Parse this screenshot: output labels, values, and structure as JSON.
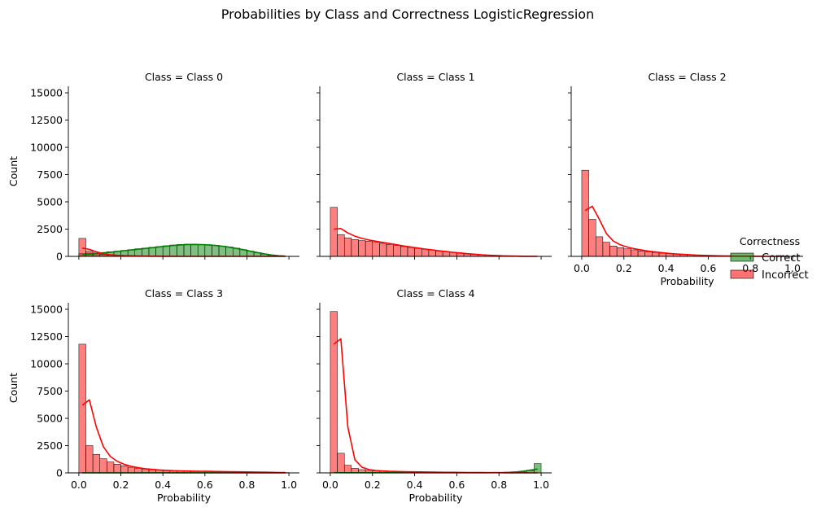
{
  "figure": {
    "title": "Probabilities by Class and Correctness LogisticRegression"
  },
  "legend": {
    "title": "Correctness",
    "placement": "right",
    "entries": [
      {
        "label": "Correct",
        "color": "#008000"
      },
      {
        "label": "Incorrect",
        "color": "#ff0000"
      }
    ]
  },
  "colors": {
    "correct": "#008000",
    "incorrect": "#ff0000"
  },
  "chart_data": {
    "type": "bar",
    "bins": 30,
    "bin_range": [
      0,
      1
    ],
    "xlabel": "Probability",
    "ylabel": "Count",
    "xlim": [
      -0.05,
      1.05
    ],
    "ylim": [
      0,
      15600
    ],
    "xticks": [
      0.0,
      0.2,
      0.4,
      0.6,
      0.8,
      1.0
    ],
    "xtick_labels": [
      "0.0",
      "0.2",
      "0.4",
      "0.6",
      "0.8",
      "1.0"
    ],
    "yticks": [
      0,
      2500,
      5000,
      7500,
      10000,
      12500,
      15000
    ],
    "ytick_labels": [
      "0",
      "2500",
      "5000",
      "7500",
      "10000",
      "12500",
      "15000"
    ],
    "grid": false,
    "layout": {
      "columns": 3,
      "rows": 2
    },
    "facets": [
      {
        "title": "Class = Class 0",
        "correct": [
          250,
          300,
          320,
          360,
          420,
          480,
          550,
          620,
          700,
          760,
          830,
          900,
          970,
          1040,
          1090,
          1120,
          1120,
          1100,
          1070,
          1020,
          940,
          860,
          750,
          620,
          480,
          340,
          210,
          110,
          40,
          10
        ],
        "incorrect": [
          1650,
          480,
          270,
          180,
          120,
          90,
          70,
          55,
          40,
          30,
          25,
          20,
          15,
          10,
          8,
          5,
          4,
          3,
          2,
          2,
          1,
          1,
          0,
          0,
          0,
          0,
          0,
          0,
          0,
          0
        ],
        "kde_correct": [
          150,
          200,
          260,
          320,
          380,
          450,
          520,
          590,
          660,
          730,
          800,
          870,
          940,
          1000,
          1050,
          1080,
          1090,
          1080,
          1050,
          1000,
          930,
          840,
          730,
          610,
          480,
          350,
          230,
          130,
          60,
          20
        ],
        "kde_incorrect": [
          760,
          640,
          420,
          250,
          150,
          100,
          70,
          50,
          35,
          25,
          18,
          12,
          8,
          5,
          3,
          2,
          1,
          1,
          0,
          0,
          0,
          0,
          0,
          0,
          0,
          0,
          0,
          0,
          0,
          0
        ]
      },
      {
        "title": "Class = Class 1",
        "correct": [],
        "incorrect": [
          4500,
          2000,
          1700,
          1550,
          1450,
          1400,
          1300,
          1200,
          1100,
          1000,
          900,
          820,
          740,
          660,
          580,
          500,
          430,
          360,
          300,
          240,
          190,
          150,
          110,
          80,
          55,
          35,
          20,
          10,
          5,
          2
        ],
        "kde_correct": [],
        "kde_incorrect": [
          2500,
          2550,
          2150,
          1850,
          1650,
          1500,
          1390,
          1280,
          1170,
          1060,
          950,
          850,
          760,
          670,
          590,
          510,
          440,
          370,
          310,
          250,
          200,
          150,
          110,
          80,
          55,
          35,
          20,
          10,
          5,
          2
        ]
      },
      {
        "title": "Class = Class 2",
        "correct": [],
        "incorrect": [
          7900,
          3400,
          1800,
          1300,
          950,
          800,
          700,
          600,
          500,
          420,
          360,
          300,
          250,
          210,
          170,
          140,
          110,
          90,
          70,
          55,
          45,
          35,
          25,
          20,
          15,
          10,
          6,
          4,
          2,
          1
        ],
        "kde_correct": [],
        "kde_incorrect": [
          4200,
          4600,
          3400,
          2100,
          1400,
          1050,
          850,
          700,
          580,
          480,
          400,
          330,
          270,
          220,
          180,
          145,
          115,
          90,
          70,
          55,
          45,
          35,
          25,
          20,
          15,
          10,
          6,
          4,
          2,
          1
        ]
      },
      {
        "title": "Class = Class 3",
        "correct": [
          5,
          5,
          5,
          5,
          5,
          5,
          5,
          5,
          5,
          5,
          5,
          5,
          5,
          5,
          5,
          5,
          5,
          5,
          5,
          5,
          5,
          5,
          5,
          5,
          5,
          5,
          5,
          5,
          5,
          5
        ],
        "incorrect": [
          11800,
          2500,
          1700,
          1300,
          1000,
          800,
          650,
          520,
          420,
          350,
          290,
          250,
          220,
          200,
          180,
          170,
          160,
          150,
          140,
          130,
          120,
          110,
          100,
          90,
          80,
          70,
          60,
          50,
          40,
          30
        ],
        "kde_correct": [
          5,
          5,
          5,
          5,
          5,
          5,
          5,
          5,
          5,
          5,
          5,
          5,
          5,
          5,
          5,
          5,
          5,
          5,
          5,
          5,
          5,
          5,
          5,
          5,
          5,
          5,
          5,
          5,
          5,
          5
        ],
        "kde_incorrect": [
          6200,
          6700,
          4200,
          2400,
          1500,
          1050,
          780,
          600,
          470,
          380,
          320,
          270,
          235,
          205,
          185,
          170,
          160,
          150,
          140,
          130,
          120,
          110,
          100,
          90,
          80,
          70,
          60,
          50,
          40,
          30
        ]
      },
      {
        "title": "Class = Class 4",
        "correct": [
          20,
          10,
          10,
          10,
          10,
          10,
          10,
          10,
          10,
          10,
          10,
          10,
          10,
          10,
          10,
          10,
          10,
          10,
          10,
          10,
          10,
          10,
          10,
          10,
          15,
          20,
          40,
          80,
          200,
          850
        ],
        "incorrect": [
          14800,
          1800,
          700,
          420,
          300,
          230,
          190,
          160,
          140,
          120,
          110,
          100,
          90,
          80,
          70,
          60,
          55,
          50,
          45,
          40,
          35,
          30,
          25,
          20,
          15,
          10,
          8,
          5,
          3,
          2
        ],
        "kde_correct": [
          20,
          15,
          12,
          12,
          12,
          12,
          12,
          12,
          12,
          12,
          12,
          12,
          12,
          12,
          12,
          12,
          12,
          12,
          12,
          12,
          12,
          12,
          15,
          20,
          30,
          50,
          90,
          160,
          260,
          350
        ],
        "kde_incorrect": [
          11800,
          12300,
          4200,
          1200,
          520,
          300,
          210,
          170,
          145,
          125,
          110,
          100,
          90,
          80,
          70,
          60,
          55,
          50,
          45,
          40,
          35,
          30,
          25,
          20,
          15,
          10,
          8,
          5,
          3,
          2
        ]
      }
    ]
  }
}
